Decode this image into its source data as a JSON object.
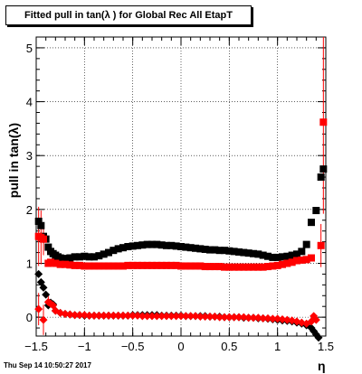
{
  "title": "Fitted pull in tan(λ ) for Global Rec All EtapT",
  "timestamp": "Thu Sep 14 10:50:27 2017",
  "chart_data": {
    "type": "scatter",
    "title": "Fitted pull in tan(λ ) for Global Rec All EtapT",
    "xlabel": "η",
    "ylabel": "pull in tan(λ)",
    "xlim": [
      -1.5,
      1.5
    ],
    "ylim": [
      -0.35,
      5.2
    ],
    "grid": true,
    "x_ticks": [
      -1.5,
      -1,
      -0.5,
      0,
      0.5,
      1,
      1.5
    ],
    "x_tick_labels": [
      "−1.5",
      "−1",
      "−0.5",
      "0",
      "0.5",
      "1",
      "1.5"
    ],
    "y_ticks": [
      0,
      1,
      2,
      3,
      4,
      5
    ],
    "y_tick_labels": [
      "0",
      "1",
      "2",
      "3",
      "4",
      "5"
    ],
    "colors": {
      "black": "#000000",
      "red": "#ff0000"
    },
    "series": [
      {
        "marker": "square",
        "color": "#000000",
        "x": [
          -1.475,
          -1.45,
          -1.425,
          -1.4,
          -1.375,
          -1.35,
          -1.325,
          -1.3,
          -1.275,
          -1.25,
          -1.2,
          -1.15,
          -1.1,
          -1.05,
          -1.0,
          -0.95,
          -0.9,
          -0.85,
          -0.8,
          -0.75,
          -0.7,
          -0.65,
          -0.6,
          -0.55,
          -0.5,
          -0.45,
          -0.4,
          -0.35,
          -0.3,
          -0.25,
          -0.2,
          -0.15,
          -0.1,
          -0.05,
          0.0,
          0.05,
          0.1,
          0.15,
          0.2,
          0.25,
          0.3,
          0.35,
          0.4,
          0.45,
          0.5,
          0.55,
          0.6,
          0.65,
          0.7,
          0.75,
          0.8,
          0.85,
          0.9,
          0.95,
          1.0,
          1.05,
          1.1,
          1.15,
          1.2,
          1.25,
          1.3,
          1.35,
          1.4,
          1.45,
          1.475
        ],
        "y": [
          1.78,
          1.7,
          1.5,
          1.45,
          1.3,
          1.22,
          1.18,
          1.15,
          1.12,
          1.1,
          1.09,
          1.1,
          1.12,
          1.12,
          1.13,
          1.12,
          1.12,
          1.14,
          1.17,
          1.2,
          1.24,
          1.27,
          1.29,
          1.31,
          1.32,
          1.33,
          1.34,
          1.35,
          1.35,
          1.35,
          1.34,
          1.33,
          1.33,
          1.32,
          1.31,
          1.3,
          1.29,
          1.28,
          1.27,
          1.26,
          1.25,
          1.25,
          1.24,
          1.24,
          1.23,
          1.22,
          1.21,
          1.2,
          1.19,
          1.18,
          1.17,
          1.15,
          1.13,
          1.11,
          1.11,
          1.12,
          1.13,
          1.15,
          1.17,
          1.22,
          1.35,
          1.76,
          1.98,
          2.6,
          2.75
        ]
      },
      {
        "marker": "square",
        "color": "#ff0000",
        "x": [
          -1.475,
          -1.45,
          -1.425,
          -1.375,
          -1.35,
          -1.3,
          -1.25,
          -1.2,
          -1.15,
          -1.1,
          -1.05,
          -1.0,
          -0.95,
          -0.9,
          -0.85,
          -0.8,
          -0.75,
          -0.7,
          -0.65,
          -0.6,
          -0.55,
          -0.5,
          -0.45,
          -0.4,
          -0.35,
          -0.3,
          -0.25,
          -0.2,
          -0.15,
          -0.1,
          -0.05,
          0.0,
          0.05,
          0.1,
          0.15,
          0.2,
          0.25,
          0.3,
          0.35,
          0.4,
          0.45,
          0.5,
          0.55,
          0.6,
          0.65,
          0.7,
          0.75,
          0.8,
          0.85,
          0.9,
          0.95,
          1.0,
          1.05,
          1.1,
          1.15,
          1.2,
          1.25,
          1.3,
          1.35,
          1.45,
          1.475
        ],
        "y": [
          1.5,
          1.48,
          1.45,
          1.0,
          1.02,
          1.0,
          0.98,
          0.98,
          0.97,
          0.96,
          0.96,
          0.95,
          0.95,
          0.95,
          0.95,
          0.95,
          0.95,
          0.95,
          0.95,
          0.95,
          0.96,
          0.96,
          0.96,
          0.96,
          0.96,
          0.96,
          0.96,
          0.96,
          0.96,
          0.96,
          0.96,
          0.95,
          0.95,
          0.95,
          0.95,
          0.95,
          0.94,
          0.94,
          0.94,
          0.94,
          0.93,
          0.93,
          0.93,
          0.93,
          0.93,
          0.93,
          0.93,
          0.93,
          0.93,
          0.94,
          0.95,
          0.96,
          0.98,
          1.0,
          1.02,
          1.05,
          1.06,
          1.07,
          1.1,
          1.33,
          3.62
        ],
        "yerr": [
          0.55,
          0.5,
          0.3,
          0,
          0,
          0,
          0,
          0,
          0,
          0,
          0,
          0,
          0,
          0,
          0,
          0,
          0,
          0,
          0,
          0,
          0,
          0,
          0,
          0,
          0,
          0,
          0,
          0,
          0,
          0,
          0,
          0,
          0,
          0,
          0,
          0,
          0,
          0,
          0,
          0,
          0,
          0,
          0,
          0,
          0,
          0,
          0,
          0,
          0,
          0,
          0,
          0,
          0,
          0,
          0,
          0,
          0,
          0,
          0,
          0.4,
          1.7
        ]
      },
      {
        "marker": "diamond",
        "color": "#000000",
        "x": [
          -1.475,
          -1.45,
          -1.425,
          -1.4,
          -1.375,
          -1.35,
          -1.325,
          -1.3,
          -1.25,
          -1.2,
          -1.15,
          -1.1,
          -1.05,
          -1.0,
          -0.95,
          -0.9,
          -0.85,
          -0.8,
          -0.75,
          -0.7,
          -0.65,
          -0.6,
          -0.55,
          -0.5,
          -0.45,
          -0.4,
          -0.35,
          -0.3,
          -0.25,
          -0.2,
          -0.15,
          -0.1,
          -0.05,
          0.0,
          0.05,
          0.1,
          0.15,
          0.2,
          0.25,
          0.3,
          0.35,
          0.4,
          0.45,
          0.5,
          0.55,
          0.6,
          0.65,
          0.7,
          0.75,
          0.8,
          0.85,
          0.9,
          0.95,
          1.0,
          1.05,
          1.1,
          1.15,
          1.2,
          1.25,
          1.3,
          1.35,
          1.375,
          1.4,
          1.425
        ],
        "y": [
          0.8,
          0.65,
          0.55,
          0.42,
          0.22,
          0.27,
          0.24,
          0.12,
          0.08,
          0.06,
          0.05,
          0.04,
          0.04,
          0.03,
          0.03,
          0.03,
          0.03,
          0.03,
          0.03,
          0.03,
          0.03,
          0.03,
          0.03,
          0.04,
          0.04,
          0.04,
          0.04,
          0.04,
          0.04,
          0.03,
          0.03,
          0.03,
          0.03,
          0.03,
          0.02,
          0.02,
          0.02,
          0.02,
          0.02,
          0.01,
          0.01,
          0.01,
          0.0,
          0.0,
          0.0,
          0.0,
          -0.01,
          -0.01,
          -0.01,
          -0.02,
          -0.02,
          -0.03,
          -0.04,
          -0.05,
          -0.06,
          -0.07,
          -0.08,
          -0.1,
          -0.12,
          -0.15,
          -0.2,
          -0.26,
          -0.32,
          -0.38
        ]
      },
      {
        "marker": "diamond",
        "color": "#ff0000",
        "x": [
          -1.475,
          -1.425,
          -1.375,
          -1.35,
          -1.325,
          -1.3,
          -1.25,
          -1.2,
          -1.15,
          -1.1,
          -1.05,
          -1.0,
          -0.95,
          -0.9,
          -0.85,
          -0.8,
          -0.75,
          -0.7,
          -0.65,
          -0.6,
          -0.55,
          -0.5,
          -0.45,
          -0.4,
          -0.35,
          -0.3,
          -0.25,
          -0.2,
          -0.15,
          -0.1,
          -0.05,
          0.0,
          0.05,
          0.1,
          0.15,
          0.2,
          0.25,
          0.3,
          0.35,
          0.4,
          0.45,
          0.5,
          0.55,
          0.6,
          0.65,
          0.7,
          0.75,
          0.8,
          0.85,
          0.9,
          0.95,
          1.0,
          1.05,
          1.1,
          1.15,
          1.2,
          1.25,
          1.3,
          1.35,
          1.375,
          1.4
        ],
        "y": [
          0.15,
          -0.05,
          0.28,
          0.25,
          0.22,
          0.12,
          0.08,
          0.06,
          0.05,
          0.04,
          0.04,
          0.04,
          0.03,
          0.03,
          0.03,
          0.03,
          0.03,
          0.03,
          0.03,
          0.03,
          0.03,
          0.03,
          0.03,
          0.02,
          0.02,
          0.02,
          0.02,
          0.02,
          0.02,
          0.02,
          0.02,
          0.02,
          0.02,
          0.02,
          0.02,
          0.01,
          0.01,
          0.01,
          0.01,
          0.0,
          0.0,
          0.0,
          0.0,
          0.0,
          0.0,
          -0.01,
          -0.01,
          -0.01,
          -0.02,
          -0.02,
          -0.03,
          -0.03,
          -0.04,
          -0.05,
          -0.06,
          -0.08,
          -0.1,
          -0.12,
          -0.08,
          0.02,
          -0.05
        ],
        "yerr": [
          0.3,
          0.28,
          0.12,
          0,
          0,
          0,
          0,
          0,
          0,
          0,
          0,
          0,
          0,
          0,
          0,
          0,
          0,
          0,
          0,
          0,
          0,
          0,
          0,
          0,
          0,
          0,
          0,
          0,
          0,
          0,
          0,
          0,
          0,
          0,
          0,
          0,
          0,
          0,
          0,
          0,
          0,
          0,
          0,
          0,
          0,
          0,
          0,
          0,
          0,
          0,
          0,
          0,
          0,
          0,
          0,
          0,
          0,
          0,
          0,
          0,
          0
        ]
      }
    ]
  }
}
